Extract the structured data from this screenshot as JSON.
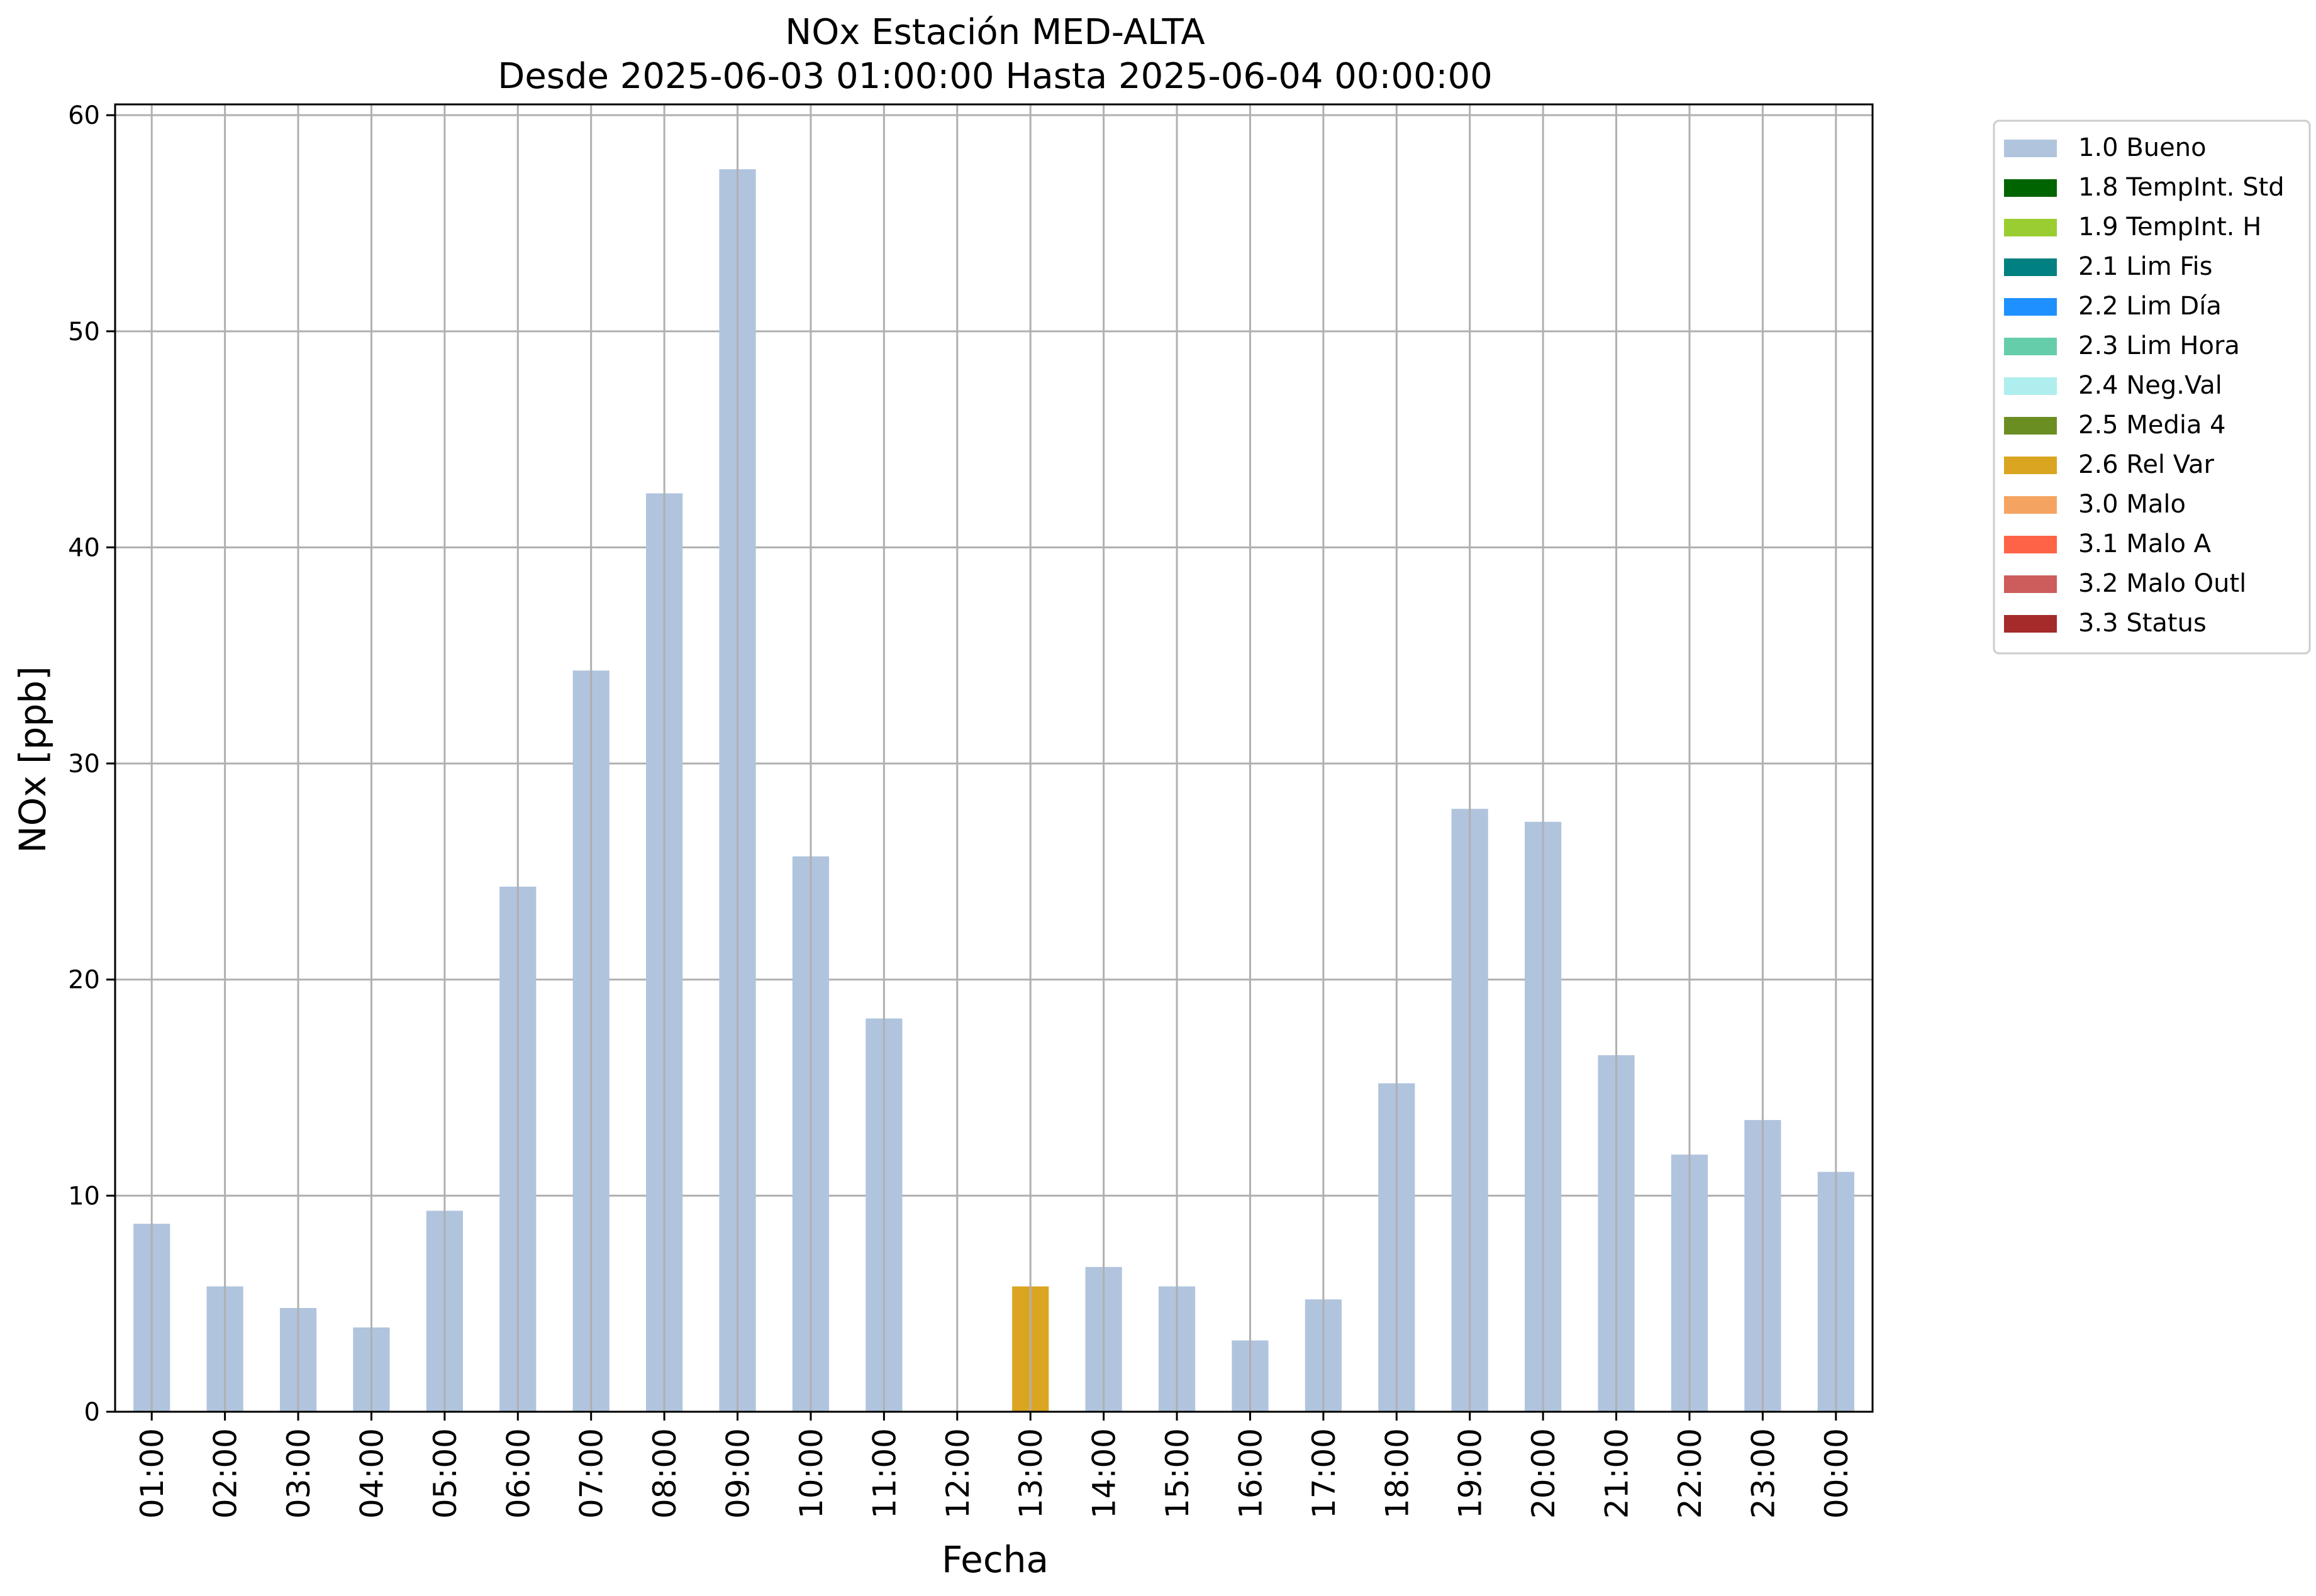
{
  "chart_data": {
    "type": "bar",
    "title": "NOx Estación MED-ALTA",
    "subtitle": "Desde 2025-06-03 01:00:00 Hasta 2025-06-04 00:00:00",
    "xlabel": "Fecha",
    "ylabel": "NOx [ppb]",
    "ylim": [
      0,
      60.5
    ],
    "yticks": [
      0,
      10,
      20,
      30,
      40,
      50,
      60
    ],
    "grid": true,
    "legend_position": "outside-right-top",
    "categories": [
      "01:00",
      "02:00",
      "03:00",
      "04:00",
      "05:00",
      "06:00",
      "07:00",
      "08:00",
      "09:00",
      "10:00",
      "11:00",
      "12:00",
      "13:00",
      "14:00",
      "15:00",
      "16:00",
      "17:00",
      "18:00",
      "19:00",
      "20:00",
      "21:00",
      "22:00",
      "23:00",
      "00:00"
    ],
    "values": [
      8.7,
      5.8,
      4.8,
      3.9,
      9.3,
      24.3,
      34.3,
      42.5,
      57.5,
      25.7,
      18.2,
      null,
      5.8,
      6.7,
      5.8,
      3.3,
      5.2,
      15.2,
      27.9,
      27.3,
      16.5,
      11.9,
      13.5,
      11.1
    ],
    "flags": [
      "1.0 Bueno",
      "1.0 Bueno",
      "1.0 Bueno",
      "1.0 Bueno",
      "1.0 Bueno",
      "1.0 Bueno",
      "1.0 Bueno",
      "1.0 Bueno",
      "1.0 Bueno",
      "1.0 Bueno",
      "1.0 Bueno",
      null,
      "2.6 Rel Var",
      "1.0 Bueno",
      "1.0 Bueno",
      "1.0 Bueno",
      "1.0 Bueno",
      "1.0 Bueno",
      "1.0 Bueno",
      "1.0 Bueno",
      "1.0 Bueno",
      "1.0 Bueno",
      "1.0 Bueno",
      "1.0 Bueno"
    ],
    "legend": [
      {
        "name": "1.0 Bueno",
        "color": "#b0c4de"
      },
      {
        "name": "1.8 TempInt. Std",
        "color": "#006400"
      },
      {
        "name": "1.9 TempInt. H",
        "color": "#9acd32"
      },
      {
        "name": "2.1 Lim Fis",
        "color": "#008080"
      },
      {
        "name": "2.2 Lim Día",
        "color": "#1e90ff"
      },
      {
        "name": "2.3 Lim Hora",
        "color": "#66cdaa"
      },
      {
        "name": "2.4 Neg.Val",
        "color": "#afeeee"
      },
      {
        "name": "2.5 Media 4",
        "color": "#6b8e23"
      },
      {
        "name": "2.6 Rel Var",
        "color": "#daa520"
      },
      {
        "name": "3.0 Malo",
        "color": "#f4a460"
      },
      {
        "name": "3.1 Malo A",
        "color": "#ff6347"
      },
      {
        "name": "3.2 Malo Outl",
        "color": "#cd5c5c"
      },
      {
        "name": "3.3 Status",
        "color": "#a52a2a"
      }
    ]
  }
}
